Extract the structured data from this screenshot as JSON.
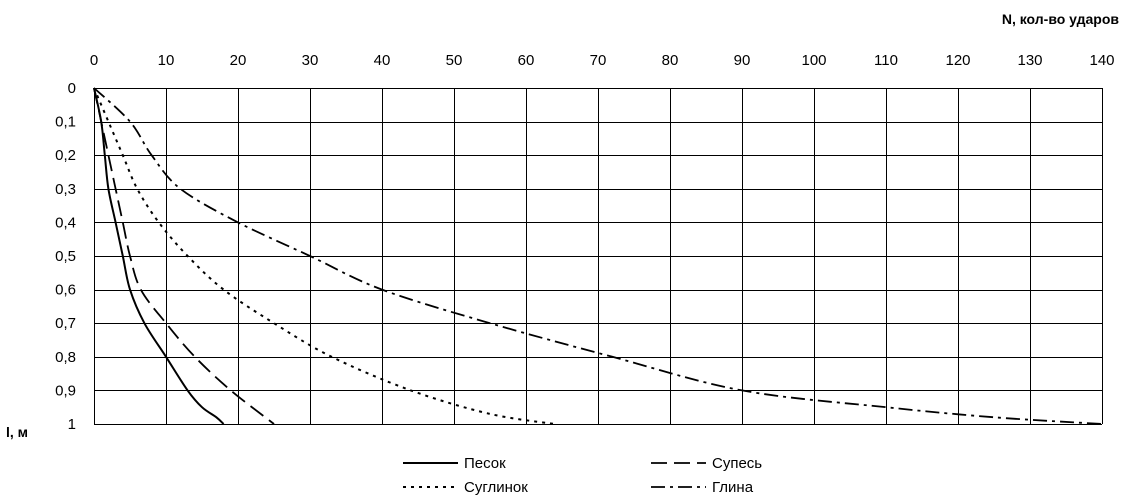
{
  "chart_data": {
    "type": "line",
    "xlabel": "N, кол-во ударов",
    "ylabel": "l, м",
    "x_axis_position": "top",
    "y_axis_inverted": true,
    "xlim": [
      0,
      140
    ],
    "ylim": [
      0,
      1
    ],
    "x_ticks": [
      0,
      10,
      20,
      30,
      40,
      50,
      60,
      70,
      80,
      90,
      100,
      110,
      120,
      130,
      140
    ],
    "x_tick_labels": [
      "0",
      "10",
      "20",
      "30",
      "40",
      "50",
      "60",
      "70",
      "80",
      "90",
      "100",
      "110",
      "120",
      "130",
      "140"
    ],
    "y_ticks": [
      0,
      0.1,
      0.2,
      0.3,
      0.4,
      0.5,
      0.6,
      0.7,
      0.8,
      0.9,
      1
    ],
    "y_tick_labels": [
      "0",
      "0,1",
      "0,2",
      "0,3",
      "0,4",
      "0,5",
      "0,6",
      "0,7",
      "0,8",
      "0,9",
      "1"
    ],
    "grid": true,
    "legend_position": "bottom",
    "series": [
      {
        "name": "Песок",
        "dash": "solid",
        "points": [
          [
            0,
            0
          ],
          [
            1,
            0.1
          ],
          [
            1.5,
            0.2
          ],
          [
            2,
            0.3
          ],
          [
            3,
            0.4
          ],
          [
            4,
            0.5
          ],
          [
            5,
            0.6
          ],
          [
            7,
            0.7
          ],
          [
            10,
            0.8
          ],
          [
            13,
            0.9
          ],
          [
            15,
            0.95
          ],
          [
            17,
            0.98
          ],
          [
            18,
            1.0
          ]
        ]
      },
      {
        "name": "Супесь",
        "dash": "long-dash",
        "points": [
          [
            0,
            0
          ],
          [
            1,
            0.1
          ],
          [
            2,
            0.2
          ],
          [
            3,
            0.3
          ],
          [
            4,
            0.4
          ],
          [
            5,
            0.5
          ],
          [
            6.5,
            0.6
          ],
          [
            10,
            0.7
          ],
          [
            14,
            0.8
          ],
          [
            19,
            0.9
          ],
          [
            25,
            1.0
          ]
        ]
      },
      {
        "name": "Суглинок",
        "dash": "dotted",
        "points": [
          [
            0,
            0
          ],
          [
            2,
            0.1
          ],
          [
            4,
            0.2
          ],
          [
            6,
            0.3
          ],
          [
            9,
            0.4
          ],
          [
            13,
            0.5
          ],
          [
            18,
            0.6
          ],
          [
            25,
            0.7
          ],
          [
            33,
            0.8
          ],
          [
            44,
            0.9
          ],
          [
            55,
            0.97
          ],
          [
            64,
            1.0
          ]
        ]
      },
      {
        "name": "Глина",
        "dash": "dash-dot",
        "points": [
          [
            0,
            0
          ],
          [
            5,
            0.1
          ],
          [
            8,
            0.2
          ],
          [
            12,
            0.3
          ],
          [
            20,
            0.4
          ],
          [
            30,
            0.5
          ],
          [
            40,
            0.6
          ],
          [
            55,
            0.7
          ],
          [
            72,
            0.8
          ],
          [
            90,
            0.9
          ],
          [
            110,
            0.95
          ],
          [
            125,
            0.98
          ],
          [
            140,
            1.0
          ]
        ]
      }
    ]
  }
}
